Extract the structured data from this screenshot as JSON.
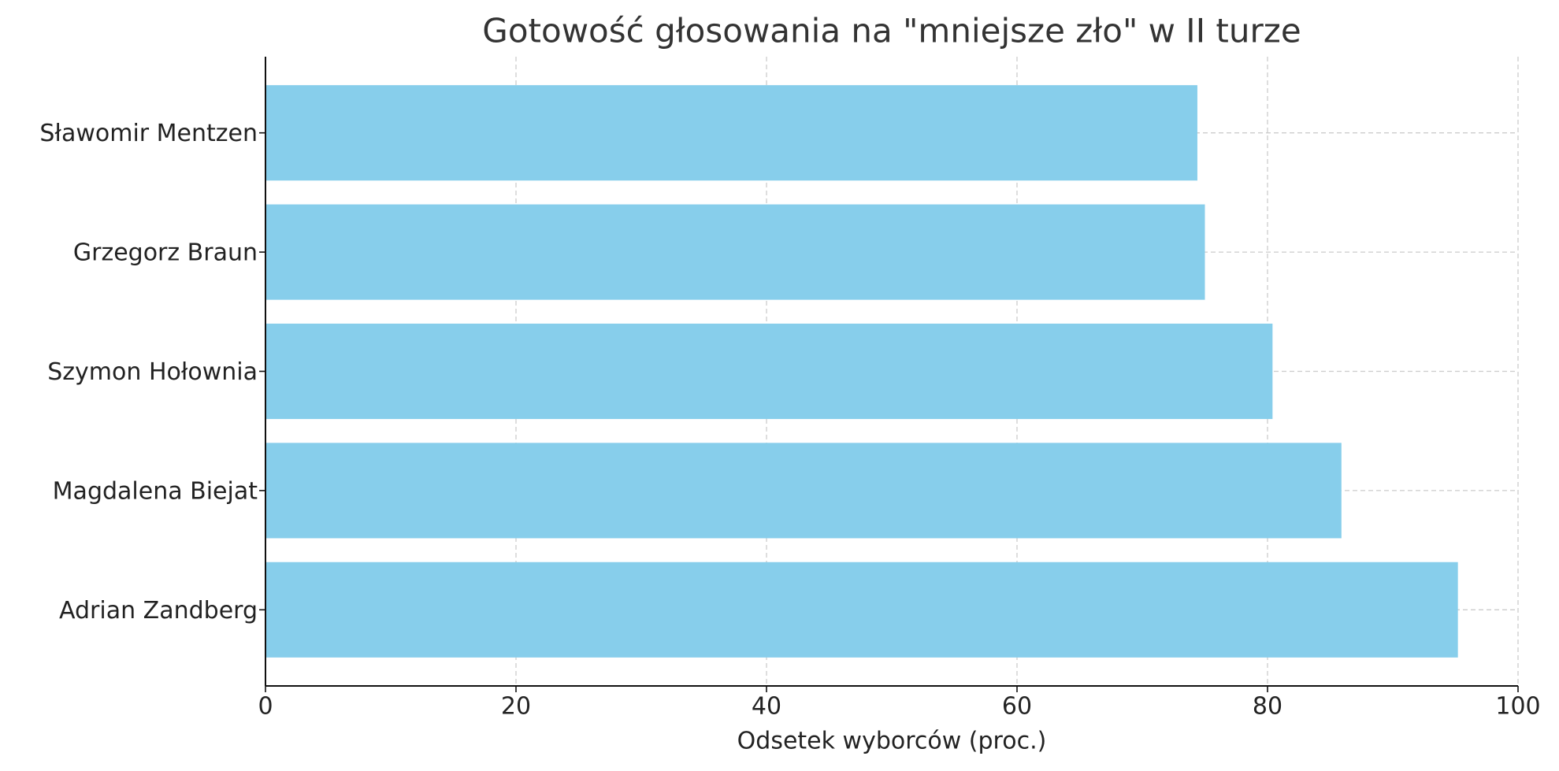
{
  "chart_data": {
    "type": "barh",
    "title": "Gotowość głosowania na \"mniejsze zło\" w II turze",
    "x_label": "Odsetek wyborców (proc.)",
    "categories": [
      "Sławomir Mentzen",
      "Grzegorz Braun",
      "Szymon Hołownia",
      "Magdalena Biejat",
      "Adrian Zandberg"
    ],
    "values": [
      74.4,
      75.0,
      80.4,
      85.9,
      95.2
    ],
    "color": "#87ceeb",
    "xlim": [
      0,
      100
    ],
    "xticks": [
      0,
      20,
      40,
      60,
      80,
      100
    ],
    "grid": true
  }
}
